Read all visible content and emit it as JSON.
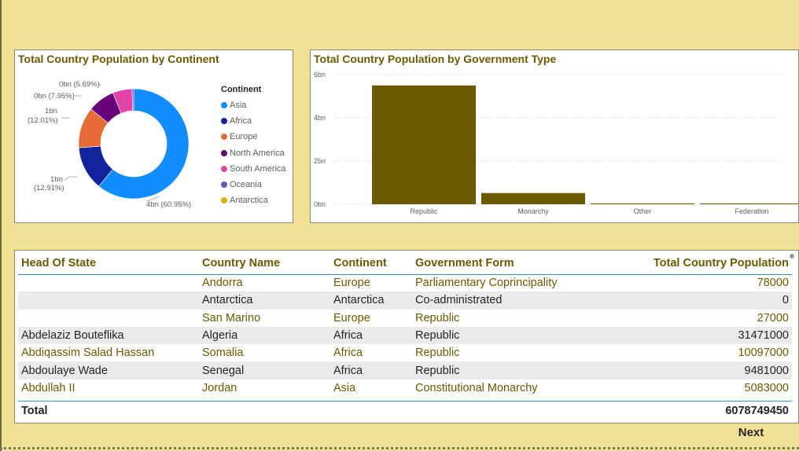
{
  "donut_panel": {
    "title": "Total Country Population by Continent",
    "legend_title": "Continent",
    "legend": [
      {
        "label": "Asia",
        "color": "#118dff"
      },
      {
        "label": "Africa",
        "color": "#12239e"
      },
      {
        "label": "Europe",
        "color": "#e66c37"
      },
      {
        "label": "North America",
        "color": "#6b007b"
      },
      {
        "label": "South America",
        "color": "#e044a7"
      },
      {
        "label": "Oceania",
        "color": "#744ec2"
      },
      {
        "label": "Antarctica",
        "color": "#d9b300"
      }
    ],
    "labels": {
      "asia": "4bn (60.95%)",
      "africa_value": "1bn",
      "africa_pct": "(12.91%)",
      "europe_value": "1bn",
      "europe_pct": "(12.01%)",
      "north_america": "0bn (7.95%)",
      "south_america": "0bn (5.69%)"
    }
  },
  "chart_data": [
    {
      "type": "pie",
      "title": "Total Country Population by Continent",
      "categories": [
        "Asia",
        "Africa",
        "Europe",
        "North America",
        "South America",
        "Oceania",
        "Antarctica"
      ],
      "values": [
        60.95,
        12.91,
        12.01,
        7.95,
        5.69,
        0.49,
        0.0
      ],
      "unit": "%",
      "colors": [
        "#118dff",
        "#12239e",
        "#e66c37",
        "#6b007b",
        "#e044a7",
        "#744ec2",
        "#d9b300"
      ],
      "legend_title": "Continent",
      "legend_position": "right"
    },
    {
      "type": "bar",
      "title": "Total Country Population by Government Type",
      "categories": [
        "Republic",
        "Monarchy",
        "Other",
        "Federation"
      ],
      "values": [
        5.5,
        0.52,
        0.04,
        0.02
      ],
      "ylim": [
        0,
        6
      ],
      "yticks": [
        "0bn",
        "2bn",
        "4bn",
        "6bn"
      ],
      "ytick_values": [
        0,
        2,
        4,
        6
      ],
      "grid": true,
      "color": "#6b5a00"
    }
  ],
  "bar_panel": {
    "title": "Total Country Population by Government Type"
  },
  "table": {
    "columns": [
      "Head Of State",
      "Country Name",
      "Continent",
      "Government Form",
      "Total Country Population"
    ],
    "rows": [
      [
        "",
        "Andorra",
        "Europe",
        "Parliamentary Coprincipality",
        "78000"
      ],
      [
        "",
        "Antarctica",
        "Antarctica",
        "Co-administrated",
        "0"
      ],
      [
        "",
        "San Marino",
        "Europe",
        "Republic",
        "27000"
      ],
      [
        "Abdelaziz Bouteflika",
        "Algeria",
        "Africa",
        "Republic",
        "31471000"
      ],
      [
        "Abdiqassim Salad Hassan",
        "Somalia",
        "Africa",
        "Republic",
        "10097000"
      ],
      [
        "Abdoulaye Wade",
        "Senegal",
        "Africa",
        "Republic",
        "9481000"
      ],
      [
        "Abdullah II",
        "Jordan",
        "Asia",
        "Constitutional Monarchy",
        "5083000"
      ]
    ],
    "total_label": "Total",
    "total_value": "6078749450"
  },
  "next_label": "Next"
}
